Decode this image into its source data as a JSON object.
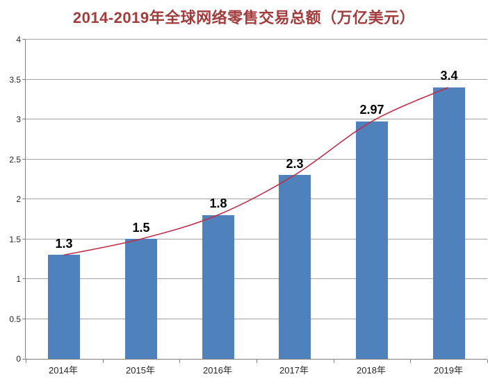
{
  "chart_data": {
    "type": "bar",
    "title": "2014-2019年全球网络零售交易总额（万亿美元）",
    "categories": [
      "2014年",
      "2015年",
      "2016年",
      "2017年",
      "2018年",
      "2019年"
    ],
    "values": [
      1.3,
      1.5,
      1.8,
      2.3,
      2.97,
      3.4
    ],
    "value_labels": [
      "1.3",
      "1.5",
      "1.8",
      "2.3",
      "2.97",
      "3.4"
    ],
    "ylim": [
      0,
      4
    ],
    "ytick_labels": [
      "0",
      "0.5",
      "1",
      "1.5",
      "2",
      "2.5",
      "3",
      "3.5",
      "4"
    ],
    "xlabel": "",
    "ylabel": "",
    "grid": true,
    "legend": "none",
    "trendline": {
      "style": "smooth",
      "color": "#c02d47"
    },
    "colors": {
      "bar": "#4f81bd",
      "trendline": "#c02d47",
      "title": "#a23b3b",
      "gridline": "#a3a3a3",
      "axis": "#808080",
      "value_label": "#000000",
      "tick_label": "#262626"
    }
  }
}
